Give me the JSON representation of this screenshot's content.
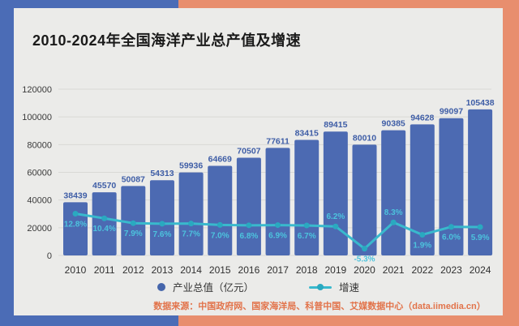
{
  "page": {
    "title": "2010-2024年全国海洋产业总产值及增速",
    "source_note": "数据来源：中国政府网、国家海洋局、科普中国、艾媒数据中心（data.iimedia.cn）"
  },
  "legend": {
    "bar_series_label": "产业总值（亿元）",
    "line_series_label": "增速"
  },
  "colors": {
    "background_blue": "#4b6cb6",
    "background_orange": "#e88e6e",
    "card": "#ebebe9",
    "bar_fill": "#4c6ab2",
    "bar_value_label": "#3e5da6",
    "line": "#39b9cd",
    "line_marker": "#2aa9c0",
    "line_value_label": "#4cc3dd",
    "grid": "#d9d9d5",
    "axis_text": "#3a3a3a",
    "year_text": "#2f2f2f",
    "title_text": "#1a1a1a",
    "source_text": "#e2734a"
  },
  "chart_data": {
    "type": "bar+line",
    "title": "2010-2024年全国海洋产业总产值及增速",
    "categories": [
      "2010",
      "2011",
      "2012",
      "2013",
      "2014",
      "2015",
      "2016",
      "2017",
      "2018",
      "2019",
      "2020",
      "2021",
      "2022",
      "2023",
      "2024"
    ],
    "series": [
      {
        "name": "产业总值（亿元）",
        "type": "bar",
        "values": [
          38439,
          45570,
          50087,
          54313,
          59936,
          64669,
          70507,
          77611,
          83415,
          89415,
          80010,
          90385,
          94628,
          99097,
          105438
        ]
      },
      {
        "name": "增速",
        "type": "line",
        "unit": "%",
        "values": [
          12.8,
          10.4,
          7.9,
          7.6,
          7.7,
          7.0,
          6.8,
          6.9,
          6.7,
          6.2,
          -5.3,
          8.3,
          1.9,
          6.0,
          5.9
        ],
        "labels": [
          "12.8%",
          "10.4%",
          "7.9%",
          "7.6%",
          "7.7%",
          "7.0%",
          "6.8%",
          "6.9%",
          "6.7%",
          "6.2%",
          "-5.3%",
          "8.3%",
          "1.9%",
          "6.0%",
          "5.9%"
        ]
      }
    ],
    "ylim": [
      0,
      120000
    ],
    "yticks": [
      0,
      20000,
      40000,
      60000,
      80000,
      100000,
      120000
    ],
    "grid": true,
    "legend_position": "bottom"
  }
}
